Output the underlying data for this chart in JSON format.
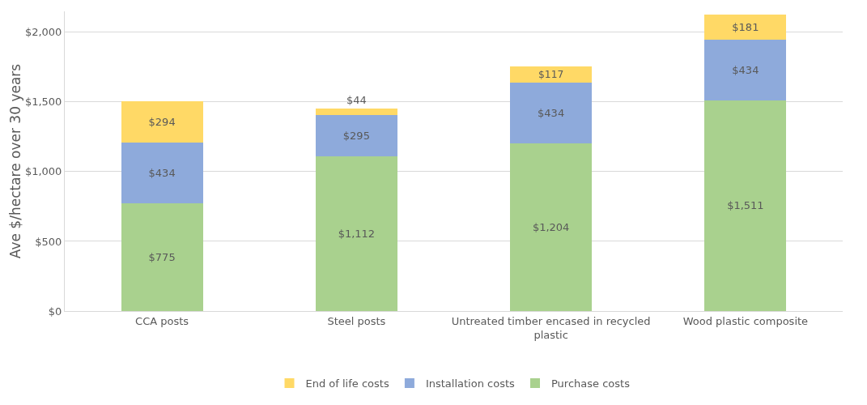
{
  "chart_data": {
    "type": "bar",
    "stacked": true,
    "ylabel": "Ave $/hectare over 30 years",
    "categories": [
      "CCA posts",
      "Steel posts",
      "Untreated timber encased in recycled plastic",
      "Wood plastic composite"
    ],
    "series": [
      {
        "name": "Purchase costs",
        "color": "#a9d18e",
        "values": [
          775,
          1112,
          1204,
          1511
        ],
        "value_labels": [
          "$775",
          "$1,112",
          "$1,204",
          "$1,511"
        ]
      },
      {
        "name": "Installation costs",
        "color": "#8eaadb",
        "values": [
          434,
          295,
          434,
          434
        ],
        "value_labels": [
          "$434",
          "$295",
          "$434",
          "$434"
        ]
      },
      {
        "name": "End of life costs",
        "color": "#ffd966",
        "values": [
          294,
          44,
          117,
          181
        ],
        "value_labels": [
          "$294",
          "$44",
          "$117",
          "$181"
        ]
      }
    ],
    "ylim": [
      0,
      2150
    ],
    "yticks": [
      {
        "value": 0,
        "label": "$0"
      },
      {
        "value": 500,
        "label": "$500"
      },
      {
        "value": 1000,
        "label": "$1,000"
      },
      {
        "value": 1500,
        "label": "$1,500"
      },
      {
        "value": 2000,
        "label": "$2,000"
      }
    ],
    "grid": "y",
    "legend": "bottom"
  }
}
